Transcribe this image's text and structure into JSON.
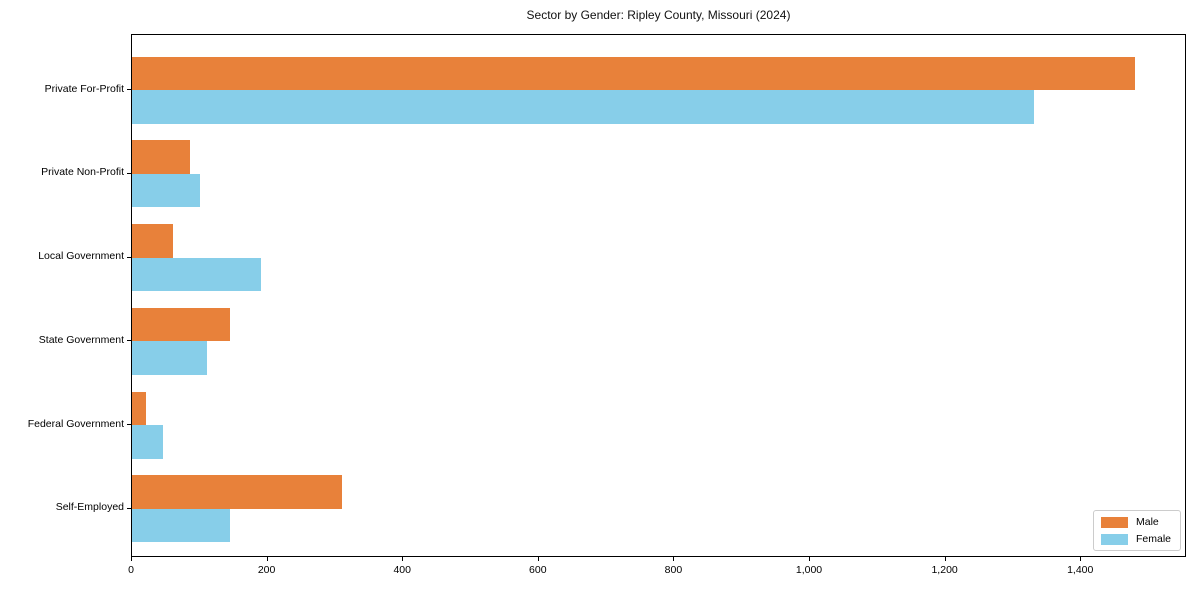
{
  "title": "Sector by Gender: Ripley County, Missouri (2024)",
  "colors": {
    "male": "#e8813a",
    "female": "#87cee9",
    "axis": "#000000",
    "legend_border": "#cccccc",
    "background": "#ffffff"
  },
  "legend": {
    "entries": [
      {
        "label": "Male",
        "color_key": "male"
      },
      {
        "label": "Female",
        "color_key": "female"
      }
    ],
    "position": "lower right"
  },
  "chart_data": {
    "type": "bar",
    "orientation": "horizontal",
    "title": "Sector by Gender: Ripley County, Missouri (2024)",
    "categories": [
      "Private For-Profit",
      "Private Non-Profit",
      "Local Government",
      "State Government",
      "Federal Government",
      "Self-Employed"
    ],
    "series": [
      {
        "name": "Male",
        "color": "#e8813a",
        "values": [
          1480,
          85,
          60,
          145,
          20,
          310
        ]
      },
      {
        "name": "Female",
        "color": "#87cee9",
        "values": [
          1330,
          100,
          190,
          110,
          45,
          145
        ]
      }
    ],
    "xlabel": "",
    "ylabel": "",
    "xlim": [
      0,
      1556
    ],
    "x_ticks": [
      0,
      200,
      400,
      600,
      800,
      1000,
      1200,
      1400
    ],
    "x_tick_labels": [
      "0",
      "200",
      "400",
      "600",
      "800",
      "1,000",
      "1,200",
      "1,400"
    ],
    "grid": false,
    "legend_position": "lower right"
  }
}
